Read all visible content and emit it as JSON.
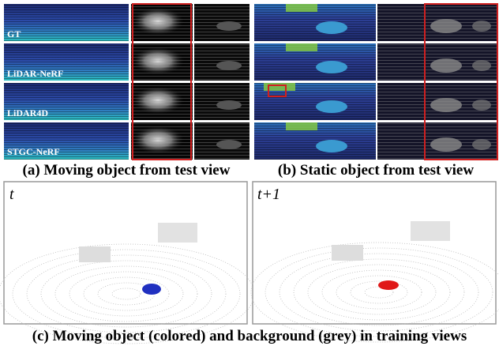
{
  "panel_a": {
    "caption": "(a) Moving object from test view",
    "rows": [
      "GT",
      "LiDAR-NeRF",
      "LiDAR4D",
      "STGC-NeRF"
    ]
  },
  "panel_b": {
    "caption": "(b) Static object from test view"
  },
  "panel_c": {
    "caption": "(c) Moving object (colored) and background (grey) in training views",
    "frames": [
      "t",
      "t+1"
    ]
  }
}
